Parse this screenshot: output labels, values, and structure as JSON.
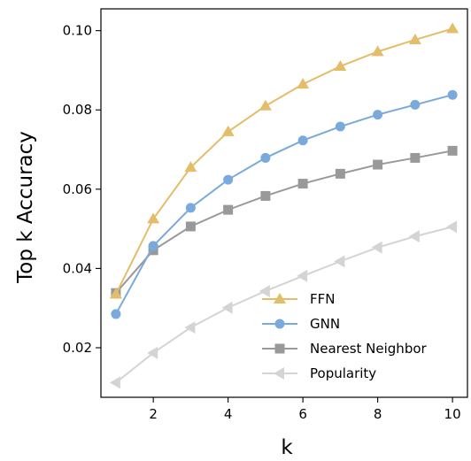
{
  "chart_data": {
    "type": "line",
    "title": "",
    "xlabel": "k",
    "ylabel": "Top k Accuracy",
    "x": [
      1,
      2,
      3,
      4,
      5,
      6,
      7,
      8,
      9,
      10
    ],
    "xlim": [
      0.6,
      10.4
    ],
    "ylim": [
      0.0075,
      0.1055
    ],
    "xticks": [
      "2",
      "4",
      "6",
      "8",
      "10"
    ],
    "xtick_values": [
      2,
      4,
      6,
      8,
      10
    ],
    "yticks": [
      "0.02",
      "0.04",
      "0.06",
      "0.08",
      "0.10"
    ],
    "ytick_values": [
      0.02,
      0.04,
      0.06,
      0.08,
      0.1
    ],
    "grid": false,
    "legend_position": "lower-right",
    "series": [
      {
        "name": "FFN",
        "marker": "triangle-up",
        "color": "#e3bd6a",
        "values": [
          0.0335,
          0.0525,
          0.0655,
          0.0745,
          0.081,
          0.0865,
          0.091,
          0.0947,
          0.0977,
          0.1005
        ]
      },
      {
        "name": "GNN",
        "marker": "circle",
        "color": "#7aa9dc",
        "values": [
          0.0285,
          0.0457,
          0.0553,
          0.0624,
          0.0679,
          0.0723,
          0.0758,
          0.0788,
          0.0813,
          0.0838
        ]
      },
      {
        "name": "Nearest Neighbor",
        "marker": "square",
        "color": "#999999",
        "values": [
          0.0338,
          0.0446,
          0.0506,
          0.0548,
          0.0583,
          0.0614,
          0.0639,
          0.0662,
          0.0679,
          0.0697
        ]
      },
      {
        "name": "Popularity",
        "marker": "triangle-left",
        "color": "#d4d4d4",
        "values": [
          0.0112,
          0.0187,
          0.0251,
          0.0301,
          0.0343,
          0.0381,
          0.0418,
          0.0453,
          0.0481,
          0.0505
        ]
      }
    ]
  }
}
